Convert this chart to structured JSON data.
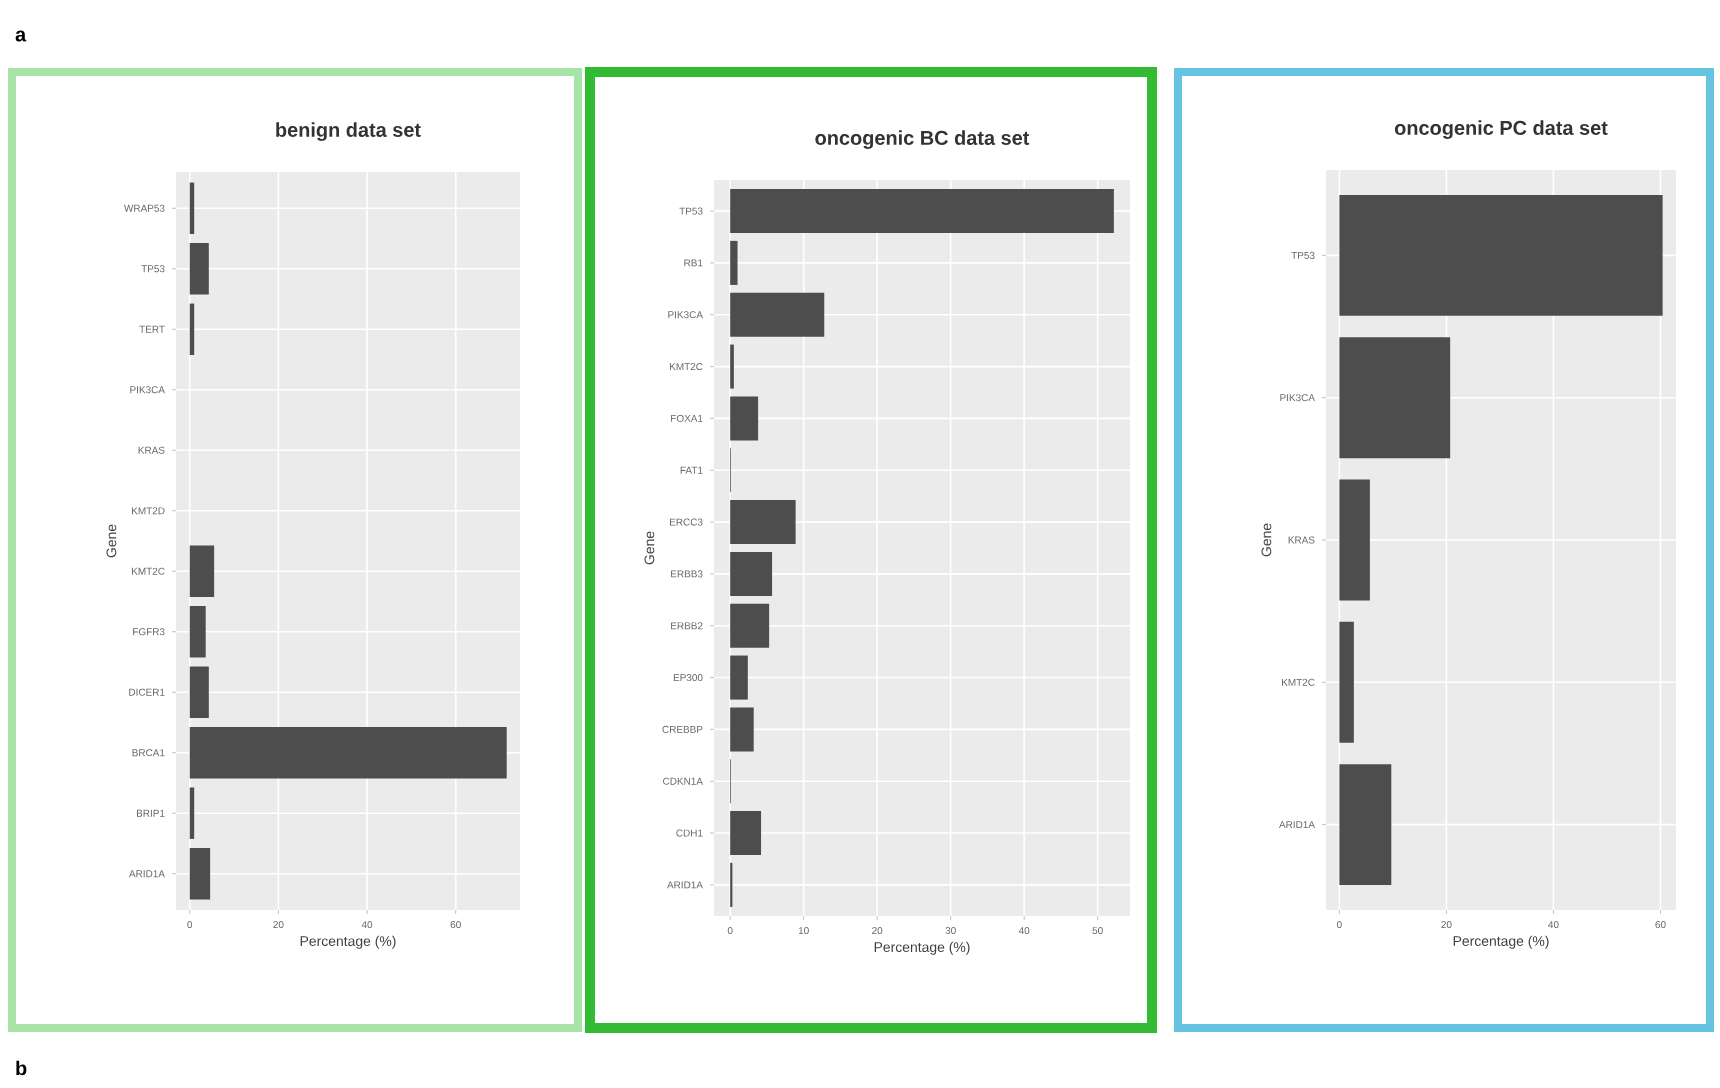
{
  "chart_data": [
    {
      "type": "bar",
      "orientation": "horizontal",
      "title": "benign data set",
      "xlabel": "Percentage (%)",
      "ylabel": "Gene",
      "categories": [
        "WRAP53",
        "TP53",
        "TERT",
        "PIK3CA",
        "KRAS",
        "KMT2D",
        "KMT2C",
        "FGFR3",
        "DICER1",
        "BRCA1",
        "BRIP1",
        "ARID1A"
      ],
      "values": [
        1,
        4.3,
        1,
        0,
        0,
        0,
        5.5,
        3.6,
        4.3,
        71.5,
        1,
        4.6
      ],
      "color": "#4d4d4d",
      "xlim": [
        -3.1,
        74.5
      ],
      "xticks": [
        0,
        20,
        40,
        60
      ],
      "grid": true,
      "annotations": [
        "a",
        "b"
      ]
    },
    {
      "type": "bar",
      "orientation": "horizontal",
      "title": "oncogenic BC data set",
      "xlabel": "Percentage (%)",
      "ylabel": "Gene",
      "categories": [
        "TP53",
        "RB1",
        "PIK3CA",
        "KMT2C",
        "FOXA1",
        "FAT1",
        "ERCC3",
        "ERBB3",
        "ERBB2",
        "EP300",
        "CREBBP",
        "CDKN1A",
        "CDH1",
        "ARID1A"
      ],
      "values": [
        52.2,
        1,
        12.8,
        0.5,
        3.8,
        0.1,
        8.9,
        5.7,
        5.3,
        2.4,
        3.2,
        0.1,
        4.2,
        0.3
      ],
      "color": "#4d4d4d",
      "xlim": [
        -2.2,
        54.4
      ],
      "xticks": [
        0,
        10,
        20,
        30,
        40,
        50
      ],
      "grid": true
    },
    {
      "type": "bar",
      "orientation": "horizontal",
      "title": "oncogenic PC data set",
      "xlabel": "Percentage (%)",
      "ylabel": "Gene",
      "categories": [
        "TP53",
        "PIK3CA",
        "KRAS",
        "KMT2C",
        "ARID1A"
      ],
      "values": [
        60.4,
        20.7,
        5.7,
        2.7,
        9.7
      ],
      "color": "#4d4d4d",
      "xlim": [
        -2.5,
        62.9
      ],
      "xticks": [
        0,
        20,
        40,
        60
      ],
      "grid": true
    }
  ]
}
